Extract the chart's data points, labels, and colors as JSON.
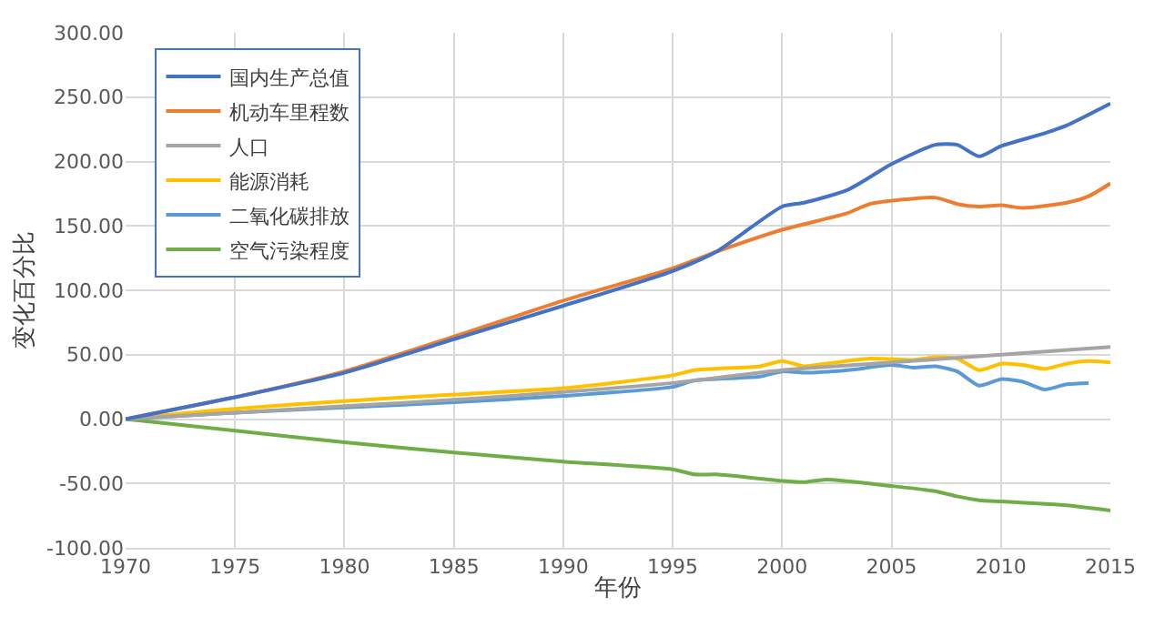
{
  "chart_data": {
    "type": "line",
    "xlabel": "年份",
    "ylabel": "变化百分比",
    "xlim": [
      1970,
      2015
    ],
    "xticks": [
      1970,
      1975,
      1980,
      1985,
      1990,
      1995,
      2000,
      2005,
      2010,
      2015
    ],
    "ylim": [
      -100,
      300
    ],
    "yticks": [
      {
        "value": -100,
        "label": "-100.00"
      },
      {
        "value": -50,
        "label": "-50.00"
      },
      {
        "value": 0,
        "label": "0.00"
      },
      {
        "value": 50,
        "label": "50.00"
      },
      {
        "value": 100,
        "label": "100.00"
      },
      {
        "value": 150,
        "label": "150.00"
      },
      {
        "value": 200,
        "label": "200.00"
      },
      {
        "value": 250,
        "label": "250.00"
      },
      {
        "value": 300,
        "label": "300.00"
      }
    ],
    "grid": true,
    "legend": "top left",
    "marker": "none",
    "line_style": "solid",
    "series": [
      {
        "name": "国内生产总值",
        "color": "#4472c4",
        "x": [
          1970,
          1975,
          1980,
          1985,
          1990,
          1995,
          1997,
          2000,
          2001,
          2003,
          2005,
          2007,
          2008,
          2009,
          2010,
          2012,
          2013,
          2015
        ],
        "values": [
          0,
          17,
          36,
          62,
          88,
          115,
          130,
          165,
          168,
          178,
          198,
          213,
          213,
          204,
          212,
          222,
          228,
          245
        ]
      },
      {
        "name": "机动车里程数",
        "color": "#ed7d31",
        "x": [
          1970,
          1975,
          1980,
          1985,
          1990,
          1995,
          1997,
          2000,
          2003,
          2004,
          2007,
          2008,
          2009,
          2010,
          2011,
          2013,
          2014,
          2015
        ],
        "values": [
          0,
          17,
          37,
          64,
          92,
          117,
          130,
          147,
          160,
          167,
          172,
          167,
          165,
          166,
          164,
          168,
          173,
          183
        ]
      },
      {
        "name": "人口",
        "color": "#a5a5a5",
        "x": [
          1970,
          1975,
          1980,
          1985,
          1990,
          1995,
          2000,
          2005,
          2010,
          2015
        ],
        "values": [
          0,
          5,
          10,
          15,
          21,
          28,
          38,
          44,
          50,
          56
        ]
      },
      {
        "name": "能源消耗",
        "color": "#ffc000",
        "x": [
          1970,
          1975,
          1980,
          1985,
          1990,
          1995,
          1996,
          1999,
          2000,
          2001,
          2002,
          2004,
          2006,
          2007,
          2008,
          2009,
          2010,
          2011,
          2012,
          2013,
          2014,
          2015
        ],
        "values": [
          0,
          8,
          14,
          19,
          24,
          34,
          38,
          41,
          45,
          41,
          43,
          47,
          46,
          48,
          47,
          38,
          43,
          42,
          39,
          43,
          45,
          44
        ]
      },
      {
        "name": "二氧化碳排放",
        "color": "#5b9bd5",
        "x": [
          1970,
          1975,
          1980,
          1985,
          1990,
          1995,
          1996,
          1999,
          2000,
          2001,
          2003,
          2005,
          2006,
          2007,
          2008,
          2009,
          2010,
          2011,
          2012,
          2013,
          2014
        ],
        "values": [
          0,
          5,
          9,
          13,
          18,
          25,
          30,
          33,
          37,
          36,
          38,
          42,
          40,
          41,
          37,
          26,
          31,
          29,
          23,
          27,
          28
        ]
      },
      {
        "name": "空气污染程度",
        "color": "#70ad47",
        "x": [
          1970,
          1975,
          1980,
          1985,
          1990,
          1995,
          1996,
          1997,
          2000,
          2001,
          2002,
          2005,
          2007,
          2008,
          2009,
          2010,
          2013,
          2015
        ],
        "values": [
          0,
          -9,
          -18,
          -26,
          -33,
          -39,
          -43,
          -43,
          -48,
          -49,
          -47,
          -52,
          -56,
          -60,
          -63,
          -64,
          -67,
          -71
        ]
      }
    ]
  }
}
